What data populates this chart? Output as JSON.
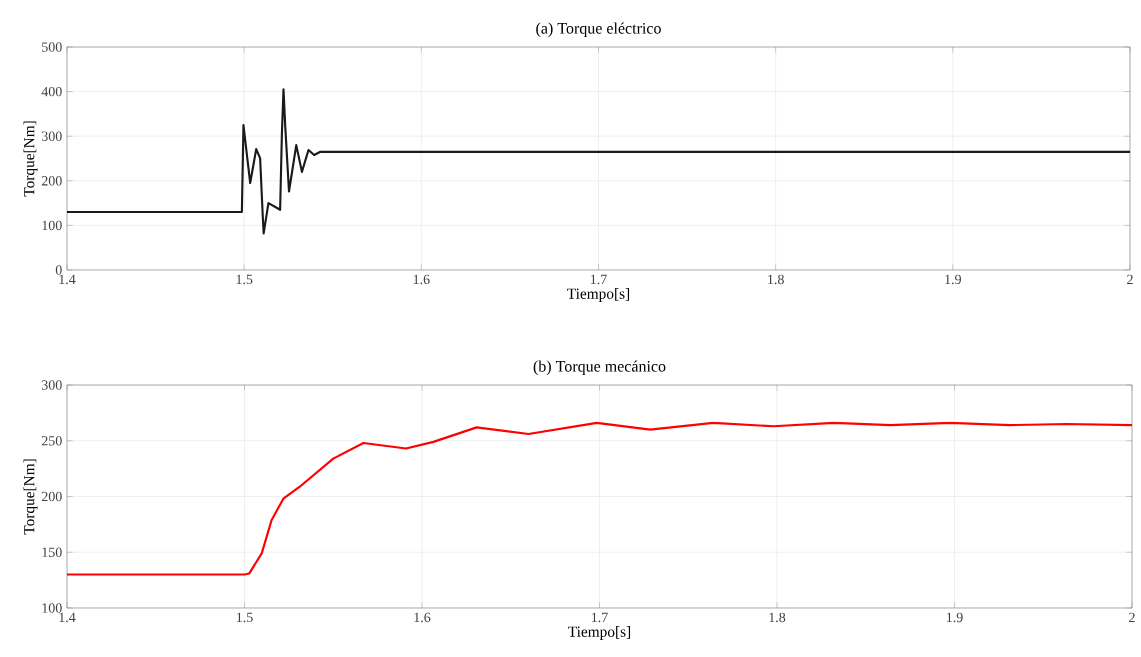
{
  "chart_data": [
    {
      "type": "line",
      "title": "(a) Torque eléctrico",
      "xlabel": "Tiempo[s]",
      "ylabel": "Torque[Nm]",
      "x": [
        1.4,
        1.4987,
        1.4996,
        1.5034,
        1.5068,
        1.509,
        1.5105,
        1.511,
        1.5137,
        1.5203,
        1.5213,
        1.5222,
        1.5232,
        1.5253,
        1.5294,
        1.5326,
        1.5363,
        1.5395,
        1.543,
        1.55,
        1.6,
        1.8,
        2.0
      ],
      "series": [
        {
          "color": "#1a1a1a",
          "values": [
            130,
            130,
            325,
            195,
            271,
            251,
            120,
            82,
            150,
            135,
            306,
            405,
            321,
            176,
            280,
            220,
            269,
            258,
            265,
            265,
            265,
            265,
            265
          ]
        }
      ],
      "xlim": [
        1.4,
        2
      ],
      "ylim": [
        0,
        500
      ],
      "xticks": [
        1.4,
        1.5,
        1.6,
        1.7,
        1.8,
        1.9,
        2
      ],
      "yticks": [
        0,
        100,
        200,
        300,
        400,
        500
      ],
      "grid": true
    },
    {
      "type": "line",
      "title": "(b) Torque mecánico",
      "xlabel": "Tiempo[s]",
      "ylabel": "Torque[Nm]",
      "x": [
        1.4,
        1.5,
        1.5027,
        1.5097,
        1.5153,
        1.5219,
        1.5313,
        1.55,
        1.567,
        1.591,
        1.6064,
        1.6308,
        1.66,
        1.6985,
        1.7285,
        1.764,
        1.798,
        1.832,
        1.864,
        1.8975,
        1.931,
        1.963,
        2.0
      ],
      "series": [
        {
          "color": "#ff0000",
          "values": [
            130,
            130,
            131,
            149,
            179,
            198,
            209,
            234,
            248,
            243,
            249,
            262,
            256,
            266,
            260,
            266,
            263,
            266,
            264,
            266,
            264,
            265,
            264
          ]
        }
      ],
      "xlim": [
        1.4,
        2
      ],
      "ylim": [
        100,
        300
      ],
      "xticks": [
        1.4,
        1.5,
        1.6,
        1.7,
        1.8,
        1.9,
        2
      ],
      "yticks": [
        100,
        150,
        200,
        250,
        300
      ],
      "grid": true
    }
  ]
}
